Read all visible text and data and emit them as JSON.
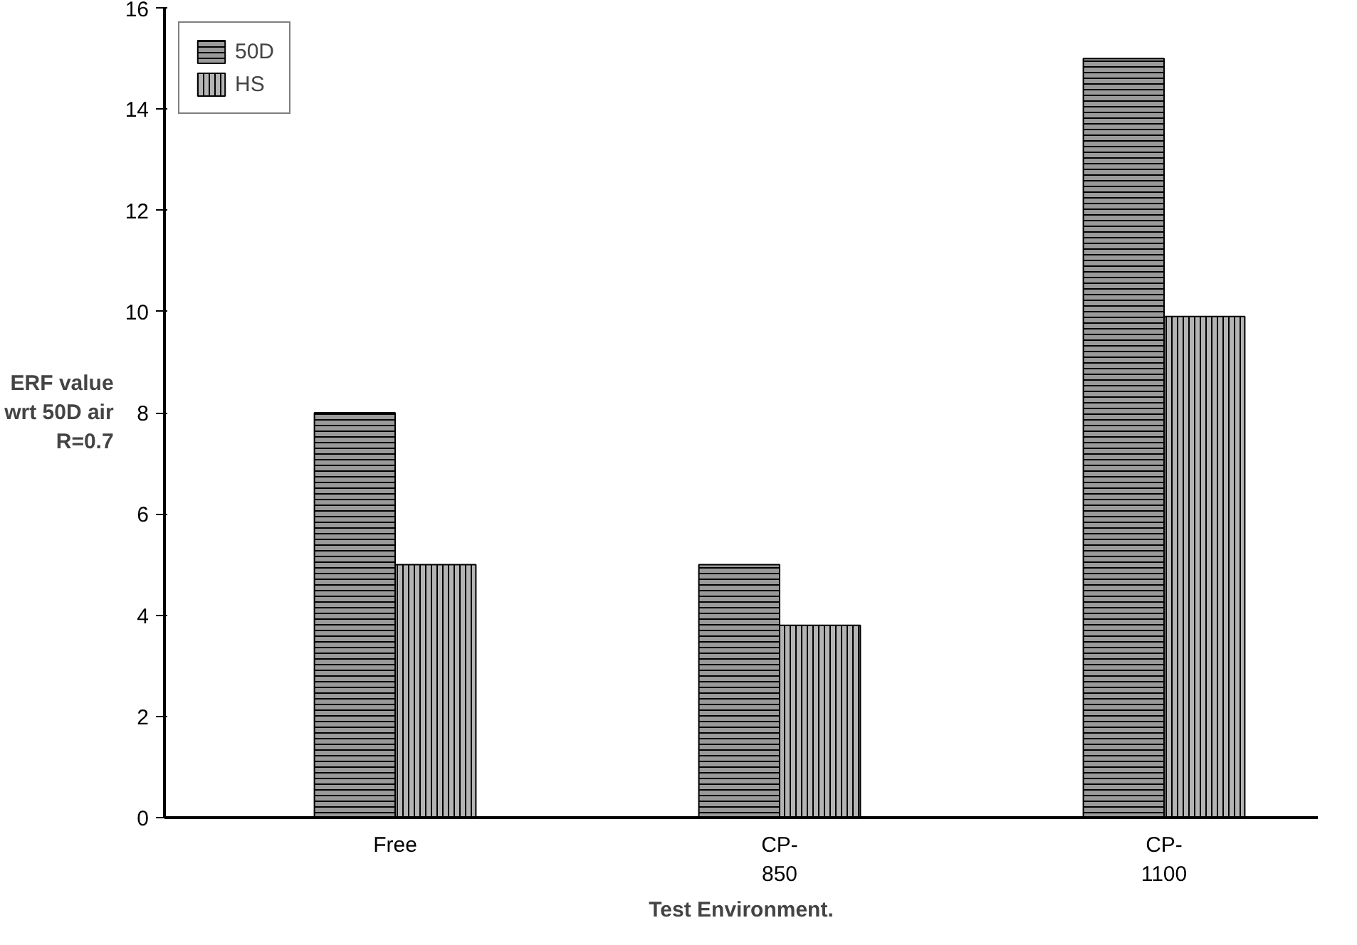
{
  "chart_data": {
    "type": "bar",
    "xlabel": "Test Environment.",
    "ylabel": "ERF value\nwrt 50D air\nR=0.7",
    "categories": [
      "Free",
      "CP-\n850",
      "CP-\n1100"
    ],
    "series": [
      {
        "name": "50D",
        "color": "#9a9a9a",
        "values": [
          8.0,
          5.0,
          15.0
        ]
      },
      {
        "name": "HS",
        "color": "#b4b4b4",
        "values": [
          5.0,
          3.8,
          9.9
        ]
      }
    ],
    "ylim": [
      0,
      16
    ],
    "yticks": [
      0,
      2,
      4,
      6,
      8,
      10,
      12,
      14,
      16
    ],
    "grid": false,
    "legend": "top left"
  }
}
